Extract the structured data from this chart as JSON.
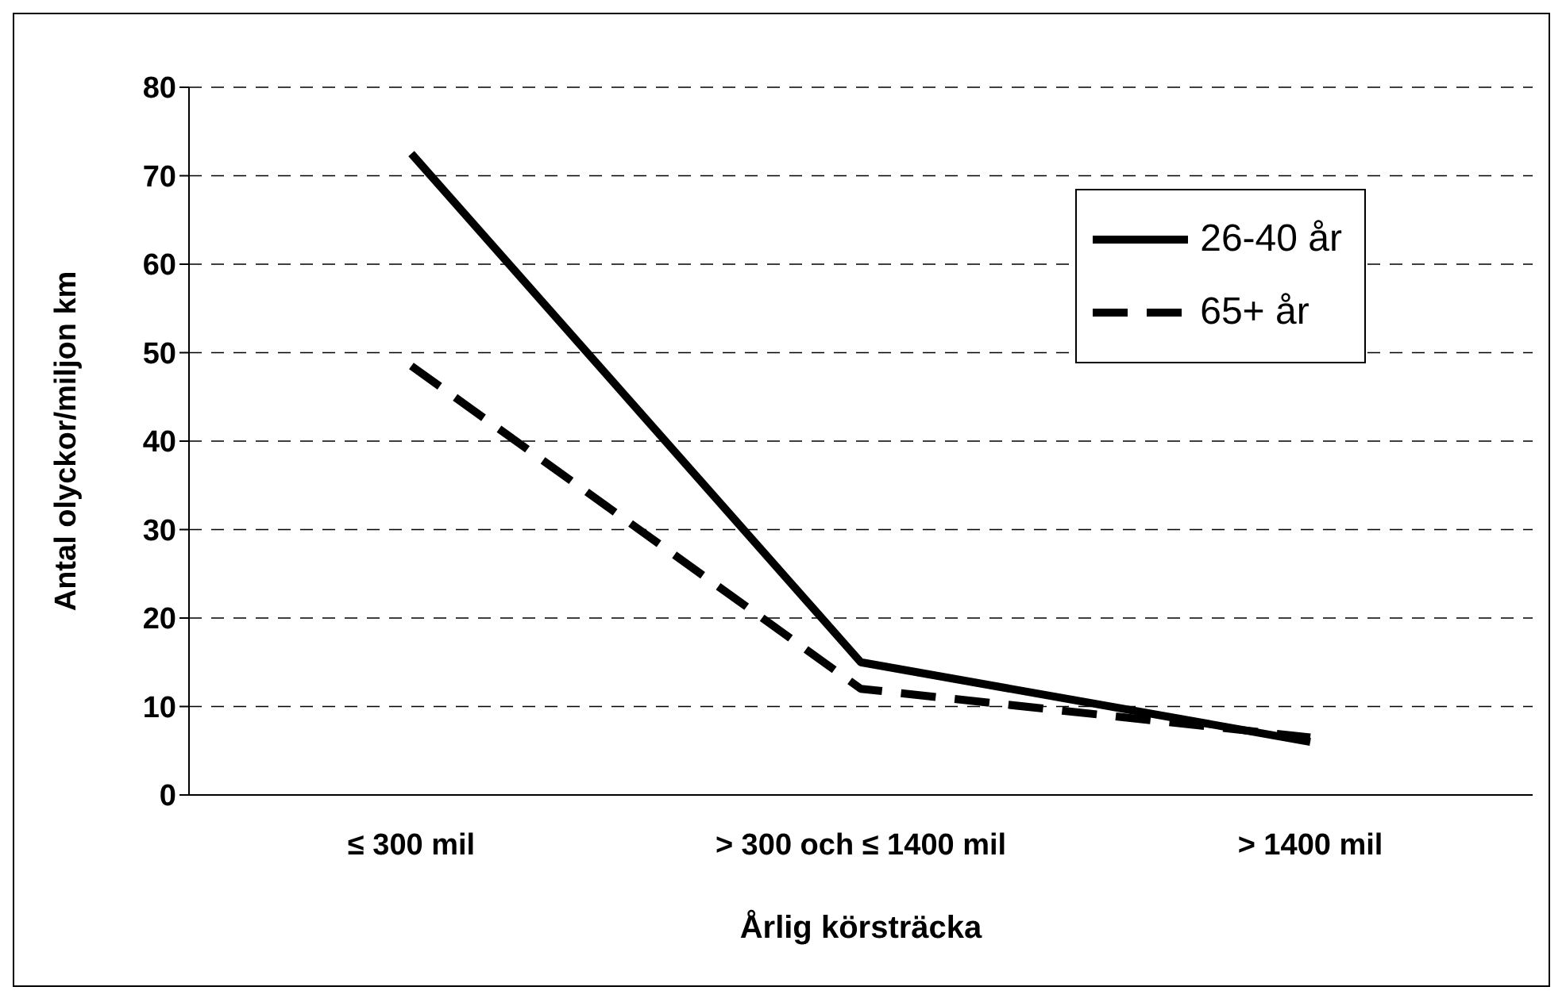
{
  "chart_data": {
    "type": "line",
    "xlabel": "Årlig körsträcka",
    "ylabel": "Antal olyckor/miljon km",
    "categories": [
      "≤ 300 mil",
      "> 300 och ≤ 1400 mil",
      "> 1400 mil"
    ],
    "series": [
      {
        "name": "26-40 år",
        "color": "#000000",
        "line_style": "solid",
        "values": [
          72.5,
          15,
          6
        ]
      },
      {
        "name": "65+ år",
        "color": "#000000",
        "line_style": "dashed",
        "values": [
          48.5,
          12,
          6.5
        ]
      }
    ],
    "ylim": [
      0,
      80
    ],
    "yticks": [
      0,
      10,
      20,
      30,
      40,
      50,
      60,
      70,
      80
    ],
    "grid": "y",
    "legend": "top right",
    "marker": "none"
  }
}
